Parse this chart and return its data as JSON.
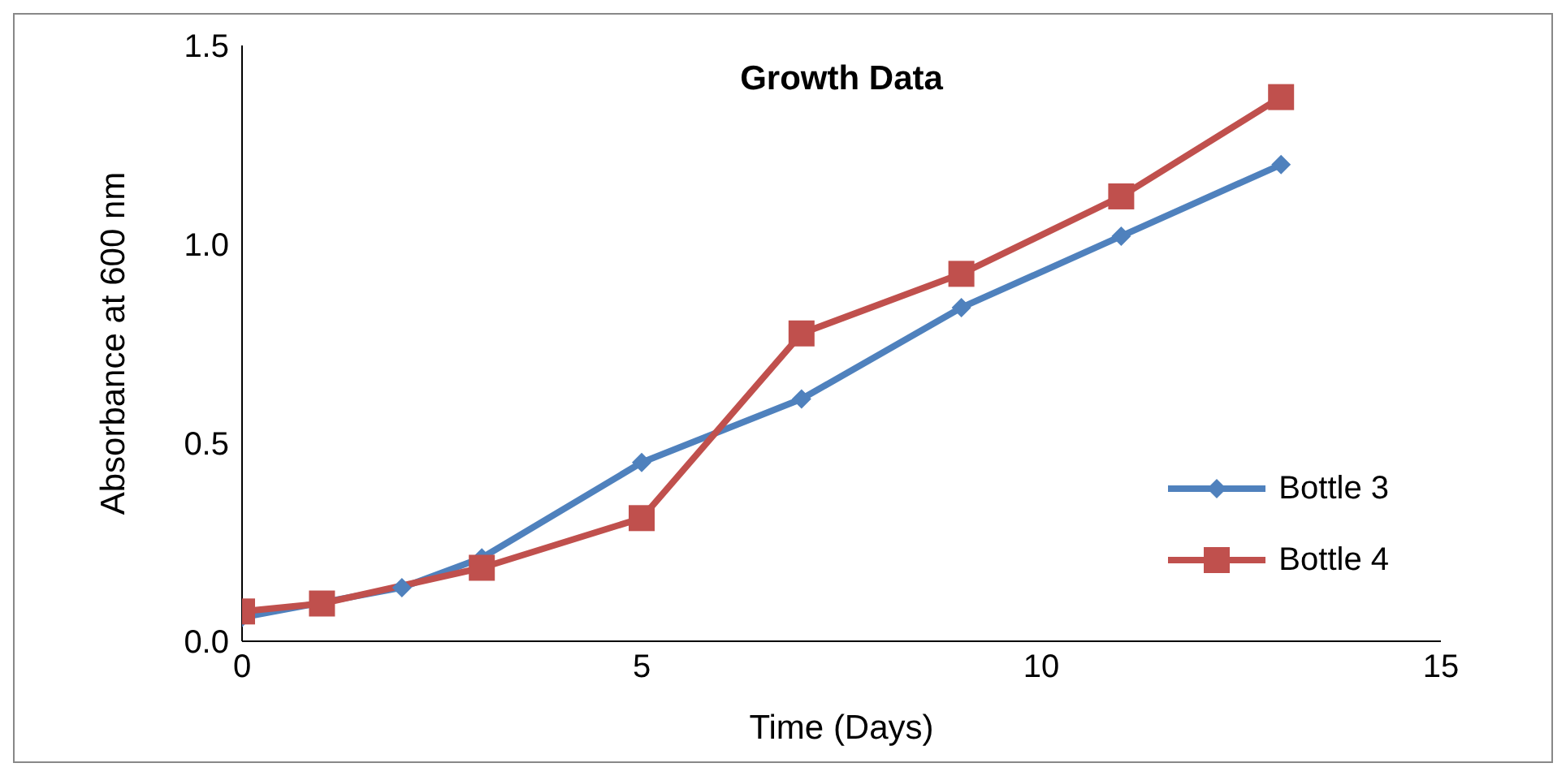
{
  "chart_data": {
    "type": "line",
    "title": "Growth Data",
    "xlabel": "Time (Days)",
    "ylabel": "Absorbance at 600 nm",
    "xlim": [
      0,
      15
    ],
    "xticks": [
      0,
      5,
      10,
      15
    ],
    "ylim": [
      0,
      1.5
    ],
    "yticks": [
      {
        "value": 0,
        "label": "0.0"
      },
      {
        "value": 0.5,
        "label": "0.5"
      },
      {
        "value": 1,
        "label": "1.0"
      },
      {
        "value": 1.5,
        "label": "1.5"
      }
    ],
    "grid": false,
    "legend": "right",
    "series": [
      {
        "name": "Bottle 3",
        "color": "#4f81bd",
        "marker": "diamond",
        "x": [
          0,
          1,
          2,
          3,
          5,
          7,
          9,
          11,
          13
        ],
        "values": [
          0.06,
          null,
          0.135,
          0.21,
          0.45,
          0.61,
          0.84,
          1.02,
          1.2
        ]
      },
      {
        "name": "Bottle 4",
        "color": "#c0504d",
        "marker": "square",
        "x": [
          0,
          1,
          3,
          5,
          7,
          9,
          11,
          13
        ],
        "values": [
          0.075,
          0.095,
          0.185,
          0.31,
          0.775,
          0.925,
          1.12,
          1.37
        ]
      }
    ]
  }
}
